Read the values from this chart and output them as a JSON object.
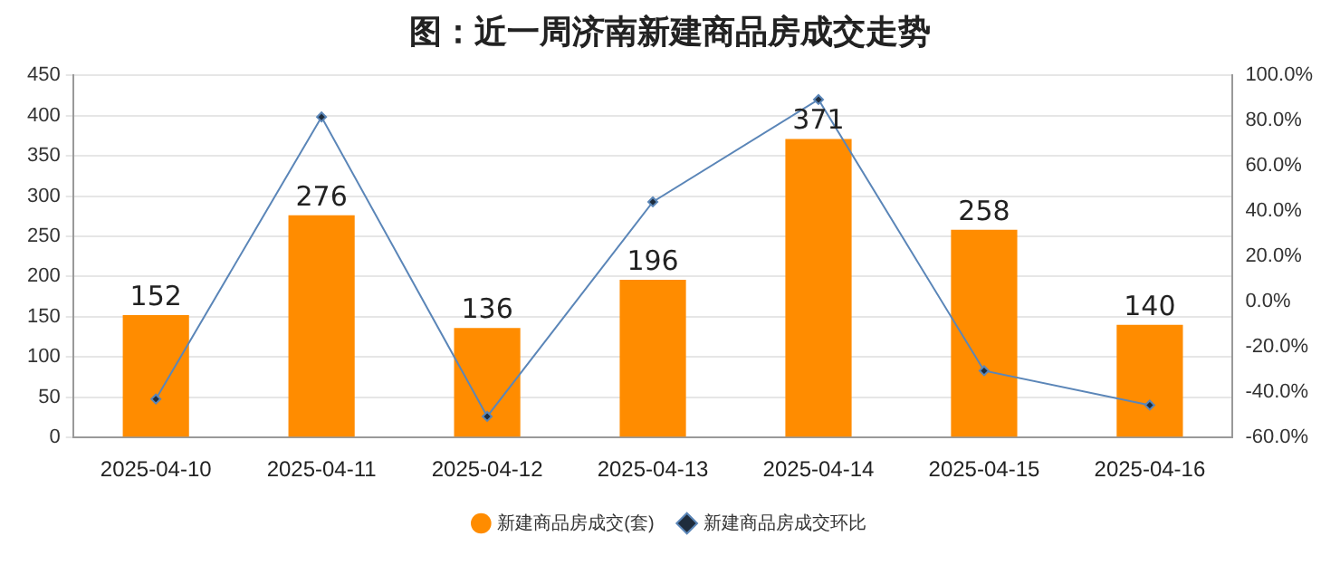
{
  "chart_data": {
    "type": "bar",
    "title": "图：近一周济南新建商品房成交走势",
    "categories": [
      "2025-04-10",
      "2025-04-11",
      "2025-04-12",
      "2025-04-13",
      "2025-04-14",
      "2025-04-15",
      "2025-04-16"
    ],
    "series": [
      {
        "name": "新建商品房成交(套)",
        "color": "#ff8c00",
        "values": [
          152,
          276,
          136,
          196,
          371,
          258,
          140
        ],
        "value_labels": [
          "152",
          "276",
          "136",
          "196",
          "371",
          "258",
          "140"
        ]
      },
      {
        "name": "新建商品房成交环比",
        "type": "line",
        "axis": "y2",
        "color": "#5b86b8",
        "marker": "diamond",
        "values": [
          -43,
          81.6,
          -50.7,
          44.1,
          89.3,
          -30.5,
          -45.7
        ]
      }
    ],
    "ylim": [
      0,
      450
    ],
    "yticks": [
      0,
      50,
      100,
      150,
      200,
      250,
      300,
      350,
      400,
      450
    ],
    "y2lim": [
      -60,
      100
    ],
    "y2ticks": [
      {
        "value": -60,
        "label": "-60.0%"
      },
      {
        "value": -40,
        "label": "-40.0%"
      },
      {
        "value": -20,
        "label": "-20.0%"
      },
      {
        "value": 0,
        "label": "0.0%"
      },
      {
        "value": 20,
        "label": "20.0%"
      },
      {
        "value": 40,
        "label": "40.0%"
      },
      {
        "value": 60,
        "label": "60.0%"
      },
      {
        "value": 80,
        "label": "80.0%"
      },
      {
        "value": 100,
        "label": "100.0%"
      }
    ],
    "grid": "y",
    "legend": "bottom"
  }
}
